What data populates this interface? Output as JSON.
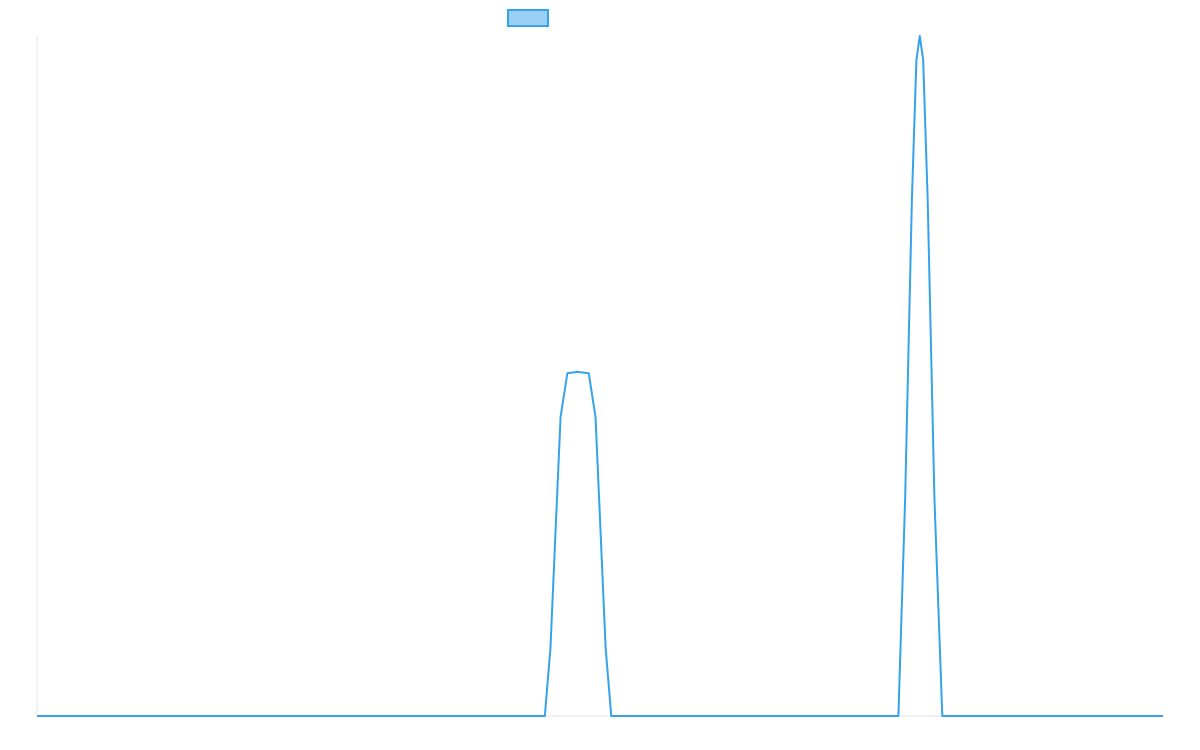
{
  "chart_data": {
    "type": "line",
    "x": [
      0,
      45.1,
      45.6,
      46.1,
      46.5,
      47.1,
      48.0,
      49.0,
      49.6,
      50.0,
      50.5,
      51.0,
      76.5,
      77.1,
      77.7,
      78.1,
      78.4,
      78.7,
      79.1,
      79.7,
      80.4,
      100
    ],
    "series": [
      {
        "color": "#36a2eb",
        "fill": "#9ad0f5",
        "values": [
          0,
          0,
          10,
          29,
          44,
          50.4,
          50.6,
          50.4,
          44,
          29,
          10,
          0,
          0,
          32,
          76,
          96.5,
          100,
          96.5,
          76,
          32,
          0,
          0
        ]
      }
    ],
    "xlim": [
      0,
      100
    ],
    "ylim": [
      0,
      100
    ],
    "legend": "top"
  }
}
